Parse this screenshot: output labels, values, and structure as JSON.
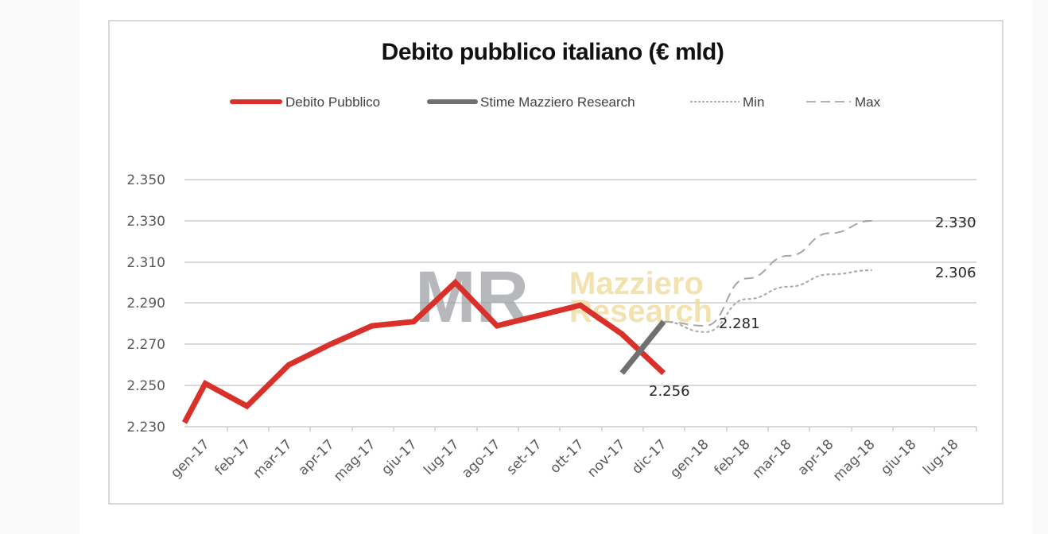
{
  "chart_data": {
    "type": "line",
    "title": "Debito pubblico italiano (€ mld)",
    "xlabel": "",
    "ylabel": "",
    "ylim": [
      2.23,
      2.35
    ],
    "yticks": [
      "2.350",
      "2.330",
      "2.310",
      "2.290",
      "2.270",
      "2.250",
      "2.230"
    ],
    "grid": true,
    "legend_position": "top",
    "categories": [
      "gen-17",
      "feb-17",
      "mar-17",
      "apr-17",
      "mag-17",
      "giu-17",
      "lug-17",
      "ago-17",
      "set-17",
      "ott-17",
      "nov-17",
      "dic-17",
      "gen-18",
      "feb-18",
      "mar-18",
      "apr-18",
      "mag-18",
      "giu-18",
      "lug-18"
    ],
    "series": [
      {
        "name": "Debito Pubblico",
        "color": "#d9302a",
        "style": "solid-thick",
        "values": [
          2.232,
          2.251,
          2.24,
          2.26,
          2.27,
          2.279,
          2.281,
          2.3,
          2.279,
          2.284,
          2.289,
          2.275,
          2.256
        ]
      },
      {
        "name": "Stime Mazziero Research",
        "color": "#707070",
        "style": "solid-thick",
        "points": [
          [
            "dic-17",
            2.256
          ],
          [
            "gen-18",
            2.281
          ]
        ]
      },
      {
        "name": "Min",
        "color": "#a6a6a6",
        "style": "dotted",
        "points": [
          [
            "gen-18",
            2.281
          ],
          [
            "feb-18",
            2.276
          ],
          [
            "mar-18",
            2.292
          ],
          [
            "apr-18",
            2.298
          ],
          [
            "mag-18",
            2.304
          ],
          [
            "giu-18",
            2.306
          ]
        ]
      },
      {
        "name": "Max",
        "color": "#a6a6a6",
        "style": "dashed",
        "points": [
          [
            "gen-18",
            2.281
          ],
          [
            "feb-18",
            2.279
          ],
          [
            "mar-18",
            2.302
          ],
          [
            "apr-18",
            2.313
          ],
          [
            "mag-18",
            2.324
          ],
          [
            "giu-18",
            2.33
          ]
        ]
      }
    ],
    "annotations": [
      {
        "text": "2.256",
        "at": "dic-17"
      },
      {
        "text": "2.281",
        "at": "gen-18"
      },
      {
        "text": "2.330",
        "at": "giu-18 (Max)"
      },
      {
        "text": "2.306",
        "at": "giu-18 (Min)"
      }
    ],
    "watermark": {
      "logo": "MR",
      "line1": "Mazziero",
      "line2": "Research"
    }
  },
  "legend": {
    "items": [
      {
        "label": "Debito Pubblico"
      },
      {
        "label": "Stime Mazziero Research"
      },
      {
        "label": "Min"
      },
      {
        "label": "Max"
      }
    ]
  },
  "labels": {
    "dic17": "2.256",
    "gen18": "2.281",
    "max_end": "2.330",
    "min_end": "2.306"
  }
}
